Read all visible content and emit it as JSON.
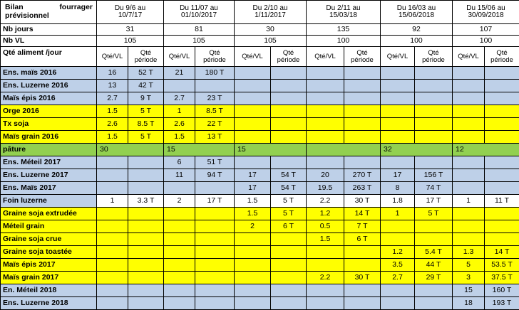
{
  "header": {
    "title_word1": "Bilan",
    "title_word2": "fourrager",
    "title_line2": "prévisionnel",
    "periods": [
      {
        "line1": "Du 9/6 au",
        "line2": "10/7/17"
      },
      {
        "line1": "Du 11/07 au",
        "line2": "01/10/2017"
      },
      {
        "line1": "Du 2/10 au",
        "line2": "1/11/2017"
      },
      {
        "line1": "Du 2/11 au",
        "line2": "15/03/18"
      },
      {
        "line1": "Du 16/03 au",
        "line2": "15/06/2018"
      },
      {
        "line1": "Du 15/06 au",
        "line2": "30/09/2018"
      }
    ]
  },
  "nb_jours": {
    "label": "Nb jours",
    "values": [
      "31",
      "81",
      "30",
      "135",
      "92",
      "107"
    ]
  },
  "nb_vl": {
    "label": "Nb VL",
    "values": [
      "105",
      "105",
      "105",
      "100",
      "100",
      "100"
    ]
  },
  "qte_header": {
    "label": "Qté aliment /jour",
    "sub1": "Qté/VL",
    "sub2_line1": "Qté",
    "sub2_line2": "période"
  },
  "rows": [
    {
      "label": "Ens. maïs 2016",
      "color": "blue",
      "cells": [
        "16",
        "52 T",
        "21",
        "180 T",
        "",
        "",
        "",
        "",
        "",
        "",
        "",
        ""
      ]
    },
    {
      "label": "Ens. Luzerne 2016",
      "color": "blue",
      "cells": [
        "13",
        "42 T",
        "",
        "",
        "",
        "",
        "",
        "",
        "",
        "",
        "",
        ""
      ]
    },
    {
      "label": "Maïs épis 2016",
      "color": "blue",
      "cells": [
        "2.7",
        "9 T",
        "2.7",
        "23 T",
        "",
        "",
        "",
        "",
        "",
        "",
        "",
        ""
      ]
    },
    {
      "label": "Orge 2016",
      "color": "yellow",
      "cells": [
        "1.5",
        "5 T",
        "1",
        "8.5 T",
        "",
        "",
        "",
        "",
        "",
        "",
        "",
        ""
      ]
    },
    {
      "label": "Tx soja",
      "color": "yellow",
      "cells": [
        "2.6",
        "8.5 T",
        "2.6",
        "22 T",
        "",
        "",
        "",
        "",
        "",
        "",
        "",
        ""
      ]
    },
    {
      "label": "Maïs grain 2016",
      "color": "yellow",
      "cells": [
        "1.5",
        "5 T",
        "1.5",
        "13 T",
        "",
        "",
        "",
        "",
        "",
        "",
        "",
        ""
      ]
    },
    {
      "label": "pâture",
      "color": "green",
      "merged": true,
      "cells": [
        "30",
        "15",
        "15",
        "",
        "32",
        "12"
      ]
    },
    {
      "label": "Ens. Méteil 2017",
      "color": "blue",
      "cells": [
        "",
        "",
        "6",
        "51 T",
        "",
        "",
        "",
        "",
        "",
        "",
        "",
        ""
      ]
    },
    {
      "label": "Ens. Luzerne 2017",
      "color": "blue",
      "cells": [
        "",
        "",
        "11",
        "94 T",
        "17",
        "54 T",
        "20",
        "270 T",
        "17",
        "156 T",
        "",
        ""
      ]
    },
    {
      "label": "Ens. Maïs 2017",
      "color": "blue",
      "cells": [
        "",
        "",
        "",
        "",
        "17",
        "54 T",
        "19.5",
        "263 T",
        "8",
        "74 T",
        "",
        ""
      ]
    },
    {
      "label": "Foin luzerne",
      "color": "blue",
      "cells": [
        "1",
        "3.3 T",
        "2",
        "17 T",
        "1.5",
        "5 T",
        "2.2",
        "30 T",
        "1.8",
        "17 T",
        "1",
        "11 T"
      ]
    },
    {
      "label": "Graine soja extrudée",
      "color": "yellow",
      "cells": [
        "",
        "",
        "",
        "",
        "1.5",
        "5 T",
        "1.2",
        "14 T",
        "1",
        "5 T",
        "",
        ""
      ]
    },
    {
      "label": "Méteil grain",
      "color": "yellow",
      "cells": [
        "",
        "",
        "",
        "",
        "2",
        "6 T",
        "0.5",
        "7 T",
        "",
        "",
        "",
        ""
      ]
    },
    {
      "label": "Graine soja crue",
      "color": "yellow",
      "cells": [
        "",
        "",
        "",
        "",
        "",
        "",
        "1.5",
        "6 T",
        "",
        "",
        "",
        ""
      ]
    },
    {
      "label": "Graine soja toastée",
      "color": "yellow",
      "cells": [
        "",
        "",
        "",
        "",
        "",
        "",
        "",
        "",
        "1.2",
        "5.4 T",
        "1.3",
        "14 T"
      ]
    },
    {
      "label": "Maïs épis 2017",
      "color": "yellow",
      "cells": [
        "",
        "",
        "",
        "",
        "",
        "",
        "",
        "",
        "3.5",
        "44 T",
        "5",
        "53.5 T"
      ]
    },
    {
      "label": "Maïs grain 2017",
      "color": "yellow",
      "cells": [
        "",
        "",
        "",
        "",
        "",
        "",
        "2.2",
        "30 T",
        "2.7",
        "29 T",
        "3",
        "37.5 T"
      ]
    },
    {
      "label": "En. Méteil 2018",
      "color": "blue",
      "cells": [
        "",
        "",
        "",
        "",
        "",
        "",
        "",
        "",
        "",
        "",
        "15",
        "160 T"
      ]
    },
    {
      "label": "Ens. Luzerne 2018",
      "color": "blue",
      "cells": [
        "",
        "",
        "",
        "",
        "",
        "",
        "",
        "",
        "",
        "",
        "18",
        "193 T"
      ]
    }
  ],
  "colors": {
    "blue": "#bed0e8",
    "yellow": "#ffff00",
    "green": "#92d050",
    "white": "#ffffff"
  }
}
